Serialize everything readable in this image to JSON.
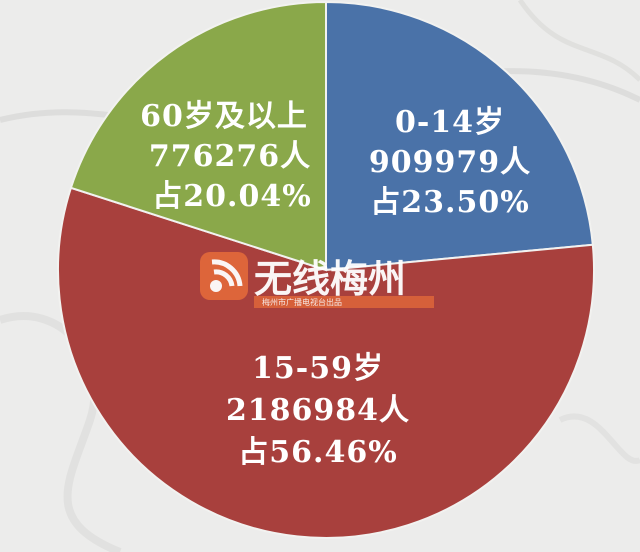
{
  "chart_data": {
    "type": "pie",
    "slices": [
      {
        "label": "0-14岁",
        "count": "909979人",
        "percent_text": "占23.50%",
        "value": 23.5,
        "color": "#4a72a8"
      },
      {
        "label": "15-59岁",
        "count": "2186984人",
        "percent_text": "占56.46%",
        "value": 56.46,
        "color": "#a8403d"
      },
      {
        "label": "60岁及以上",
        "count": "776276人",
        "percent_text": "占20.04%",
        "value": 20.04,
        "color": "#8aa84a"
      }
    ]
  },
  "watermark": {
    "brand": "无线梅州",
    "sub": "梅州市广播电视台出品"
  }
}
